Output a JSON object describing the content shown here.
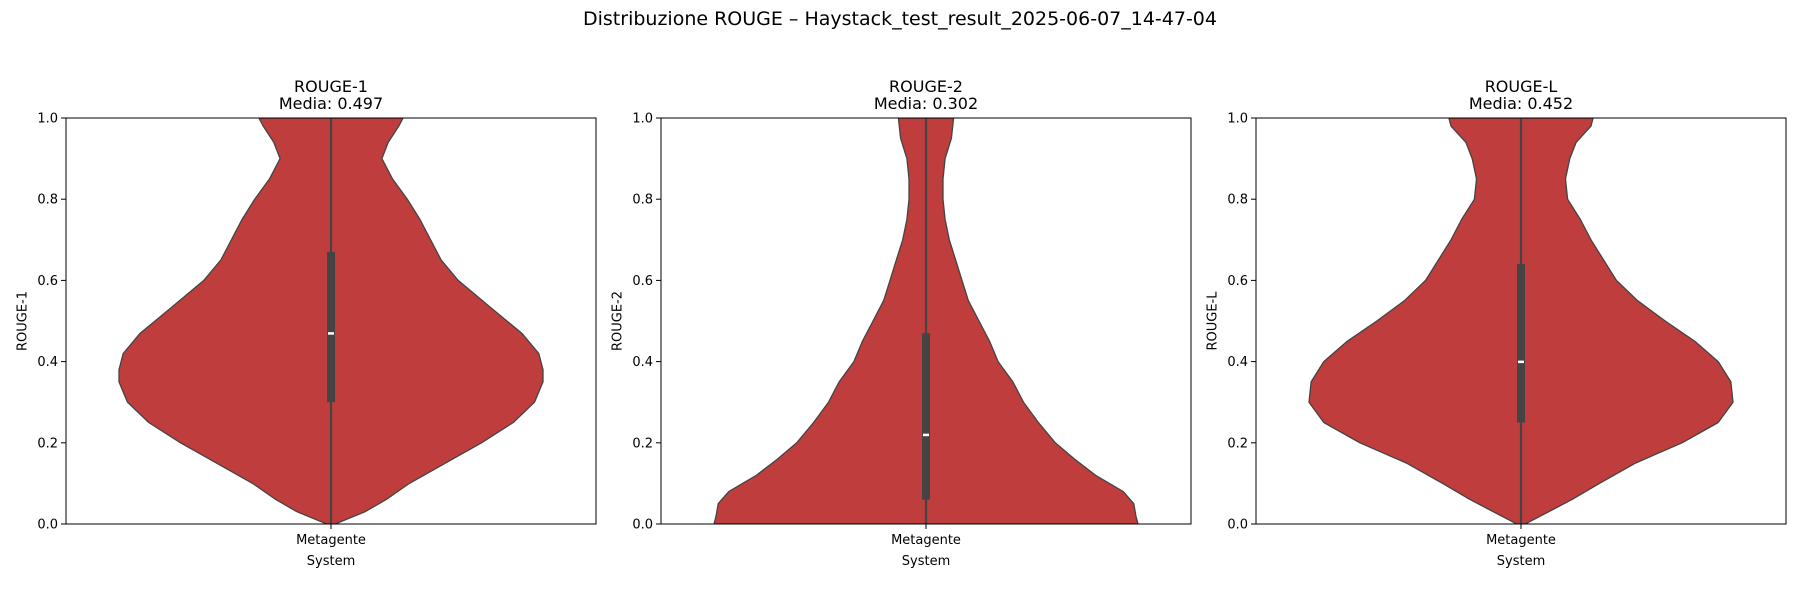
{
  "figure": {
    "suptitle": "Distribuzione ROUGE – Haystack_test_result_2025-06-07_14-47-04"
  },
  "chart_data": [
    {
      "type": "violin",
      "title": "ROUGE-1",
      "subtitle": "Media: 0.497",
      "xlabel": "System",
      "ylabel": "ROUGE-1",
      "categories": [
        "Metagente"
      ],
      "ylim": [
        0,
        1
      ],
      "yticks": [
        "0.0",
        "0.2",
        "0.4",
        "0.6",
        "0.8",
        "1.0"
      ],
      "color": "#bf3d3d",
      "box": {
        "q1": 0.3,
        "median": 0.47,
        "q3": 0.67
      },
      "density": {
        "y": [
          0.0,
          0.03,
          0.06,
          0.1,
          0.15,
          0.2,
          0.25,
          0.3,
          0.35,
          0.38,
          0.42,
          0.47,
          0.53,
          0.6,
          0.65,
          0.7,
          0.75,
          0.8,
          0.85,
          0.9,
          0.94,
          0.98,
          1.0
        ],
        "width": [
          0.02,
          0.16,
          0.26,
          0.37,
          0.54,
          0.71,
          0.86,
          0.96,
          1.0,
          1.0,
          0.98,
          0.9,
          0.76,
          0.6,
          0.52,
          0.47,
          0.42,
          0.36,
          0.29,
          0.24,
          0.27,
          0.32,
          0.34
        ]
      }
    },
    {
      "type": "violin",
      "title": "ROUGE-2",
      "subtitle": "Media: 0.302",
      "xlabel": "System",
      "ylabel": "ROUGE-2",
      "categories": [
        "Metagente"
      ],
      "ylim": [
        0,
        1
      ],
      "yticks": [
        "0.0",
        "0.2",
        "0.4",
        "0.6",
        "0.8",
        "1.0"
      ],
      "color": "#bf3d3d",
      "box": {
        "q1": 0.06,
        "median": 0.22,
        "q3": 0.47
      },
      "density": {
        "y": [
          0.0,
          0.02,
          0.05,
          0.08,
          0.12,
          0.16,
          0.2,
          0.25,
          0.3,
          0.35,
          0.4,
          0.45,
          0.5,
          0.55,
          0.6,
          0.65,
          0.7,
          0.75,
          0.8,
          0.85,
          0.9,
          0.95,
          1.0
        ],
        "width": [
          1.0,
          0.99,
          0.98,
          0.93,
          0.8,
          0.7,
          0.61,
          0.53,
          0.46,
          0.41,
          0.34,
          0.3,
          0.25,
          0.2,
          0.17,
          0.14,
          0.11,
          0.09,
          0.08,
          0.08,
          0.09,
          0.12,
          0.13
        ]
      }
    },
    {
      "type": "violin",
      "title": "ROUGE-L",
      "subtitle": "Media: 0.452",
      "xlabel": "System",
      "ylabel": "ROUGE-L",
      "categories": [
        "Metagente"
      ],
      "ylim": [
        0,
        1
      ],
      "yticks": [
        "0.0",
        "0.2",
        "0.4",
        "0.6",
        "0.8",
        "1.0"
      ],
      "color": "#bf3d3d",
      "box": {
        "q1": 0.25,
        "median": 0.4,
        "q3": 0.64
      },
      "density": {
        "y": [
          0.0,
          0.03,
          0.06,
          0.1,
          0.15,
          0.2,
          0.25,
          0.3,
          0.35,
          0.4,
          0.45,
          0.5,
          0.55,
          0.6,
          0.65,
          0.7,
          0.75,
          0.8,
          0.85,
          0.9,
          0.94,
          0.98,
          1.0
        ],
        "width": [
          0.02,
          0.13,
          0.24,
          0.37,
          0.54,
          0.76,
          0.93,
          1.0,
          0.99,
          0.93,
          0.82,
          0.68,
          0.55,
          0.45,
          0.39,
          0.33,
          0.28,
          0.22,
          0.21,
          0.23,
          0.26,
          0.33,
          0.34
        ]
      }
    }
  ]
}
